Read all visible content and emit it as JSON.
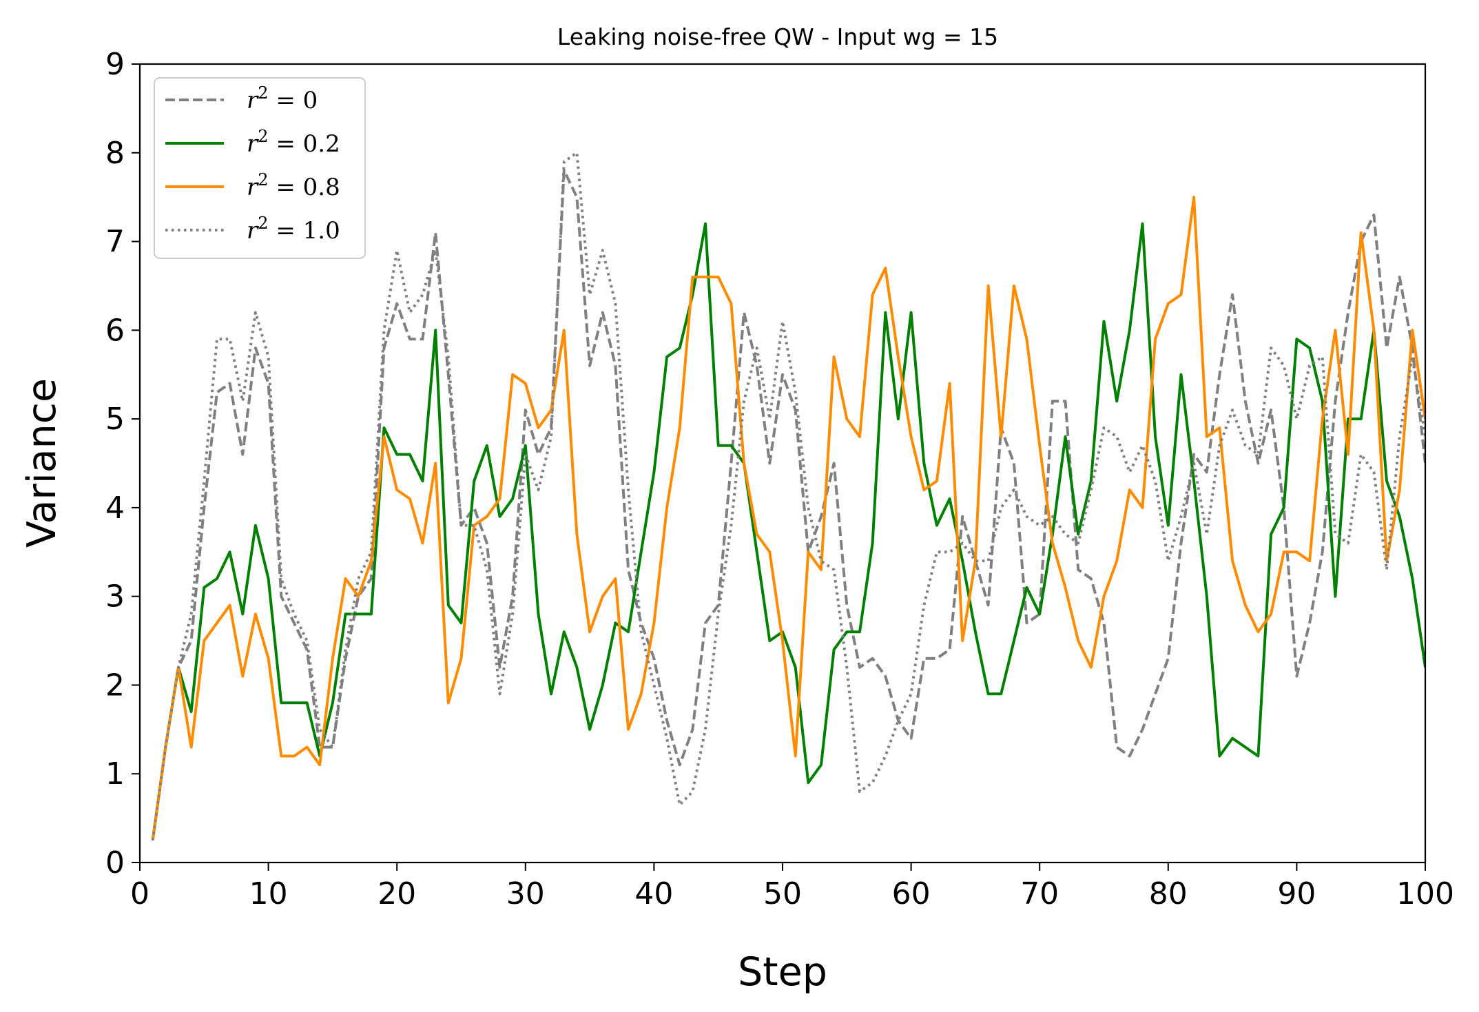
{
  "chart_data": {
    "type": "line",
    "title": "Leaking noise-free QW - Input wg = 15",
    "xlabel": "Step",
    "ylabel": "Variance",
    "xlim": [
      0,
      100
    ],
    "ylim": [
      0,
      9
    ],
    "xticks": [
      0,
      10,
      20,
      30,
      40,
      50,
      60,
      70,
      80,
      90,
      100
    ],
    "xtick_labels": [
      "0",
      "10",
      "20",
      "30",
      "40",
      "50",
      "60",
      "70",
      "80",
      "90",
      "100"
    ],
    "yticks": [
      0,
      1,
      2,
      3,
      4,
      5,
      6,
      7,
      8,
      9
    ],
    "ytick_labels": [
      "0",
      "1",
      "2",
      "3",
      "4",
      "5",
      "6",
      "7",
      "8",
      "9"
    ],
    "grid": false,
    "legend_position": "top-left",
    "x": [
      1,
      2,
      3,
      4,
      5,
      6,
      7,
      8,
      9,
      10,
      11,
      12,
      13,
      14,
      15,
      16,
      17,
      18,
      19,
      20,
      21,
      22,
      23,
      24,
      25,
      26,
      27,
      28,
      29,
      30,
      31,
      32,
      33,
      34,
      35,
      36,
      37,
      38,
      39,
      40,
      41,
      42,
      43,
      44,
      45,
      46,
      47,
      48,
      49,
      50,
      51,
      52,
      53,
      54,
      55,
      56,
      57,
      58,
      59,
      60,
      61,
      62,
      63,
      64,
      65,
      66,
      67,
      68,
      69,
      70,
      71,
      72,
      73,
      74,
      75,
      76,
      77,
      78,
      79,
      80,
      81,
      82,
      83,
      84,
      85,
      86,
      87,
      88,
      89,
      90,
      91,
      92,
      93,
      94,
      95,
      96,
      97,
      98,
      99,
      100
    ],
    "series": [
      {
        "name": "r2 = 0",
        "legend_label": "r",
        "legend_sup": "2",
        "legend_value": " = 0",
        "color": "#808080",
        "dash": "dashed",
        "values": [
          0.25,
          1.3,
          2.2,
          2.5,
          4.0,
          5.3,
          5.4,
          4.6,
          5.8,
          5.4,
          3.0,
          2.7,
          2.4,
          1.3,
          1.3,
          2.3,
          3.0,
          3.2,
          5.8,
          6.3,
          5.9,
          5.9,
          7.1,
          5.5,
          3.8,
          4.0,
          3.6,
          2.2,
          3.0,
          5.1,
          4.6,
          4.9,
          7.8,
          7.5,
          5.6,
          6.2,
          5.6,
          3.3,
          2.7,
          2.3,
          1.6,
          1.1,
          1.5,
          2.7,
          2.9,
          4.5,
          6.2,
          5.6,
          4.5,
          5.5,
          5.1,
          3.5,
          3.9,
          4.5,
          2.9,
          2.2,
          2.3,
          2.1,
          1.6,
          1.4,
          2.3,
          2.3,
          2.4,
          3.9,
          3.4,
          2.9,
          4.9,
          4.5,
          2.7,
          2.8,
          5.2,
          5.2,
          3.3,
          3.2,
          2.7,
          1.3,
          1.2,
          1.5,
          1.9,
          2.3,
          3.6,
          4.6,
          4.4,
          5.5,
          6.4,
          5.2,
          4.5,
          5.1,
          4.0,
          2.1,
          2.7,
          3.5,
          5.2,
          6.2,
          7.0,
          7.3,
          5.8,
          6.6,
          5.8,
          4.5
        ]
      },
      {
        "name": "r2 = 0.2",
        "legend_label": "r",
        "legend_sup": "2",
        "legend_value": " = 0.2",
        "color": "#008000",
        "dash": "solid",
        "values": [
          0.25,
          1.3,
          2.2,
          1.7,
          3.1,
          3.2,
          3.5,
          2.8,
          3.8,
          3.2,
          1.8,
          1.8,
          1.8,
          1.2,
          1.8,
          2.8,
          2.8,
          2.8,
          4.9,
          4.6,
          4.6,
          4.3,
          6.0,
          2.9,
          2.7,
          4.3,
          4.7,
          3.9,
          4.1,
          4.7,
          2.8,
          1.9,
          2.6,
          2.2,
          1.5,
          2.0,
          2.7,
          2.6,
          3.5,
          4.4,
          5.7,
          5.8,
          6.4,
          7.2,
          4.7,
          4.7,
          4.5,
          3.5,
          2.5,
          2.6,
          2.2,
          0.9,
          1.1,
          2.4,
          2.6,
          2.6,
          3.6,
          6.2,
          5.0,
          6.2,
          4.5,
          3.8,
          4.1,
          3.4,
          2.6,
          1.9,
          1.9,
          2.5,
          3.1,
          2.8,
          3.7,
          4.8,
          3.7,
          4.3,
          6.1,
          5.2,
          6.0,
          7.2,
          4.8,
          3.8,
          5.5,
          4.3,
          3.0,
          1.2,
          1.4,
          1.3,
          1.2,
          3.7,
          4.0,
          5.9,
          5.8,
          5.2,
          3.0,
          5.0,
          5.0,
          6.0,
          4.3,
          3.9,
          3.2,
          2.2
        ]
      },
      {
        "name": "r2 = 0.8",
        "legend_label": "r",
        "legend_sup": "2",
        "legend_value": " = 0.8",
        "color": "#ff8c00",
        "dash": "solid",
        "values": [
          0.25,
          1.3,
          2.2,
          1.3,
          2.5,
          2.7,
          2.9,
          2.1,
          2.8,
          2.3,
          1.2,
          1.2,
          1.3,
          1.1,
          2.3,
          3.2,
          3.0,
          3.4,
          4.8,
          4.2,
          4.1,
          3.6,
          4.5,
          1.8,
          2.3,
          3.8,
          3.9,
          4.1,
          5.5,
          5.4,
          4.9,
          5.1,
          6.0,
          3.7,
          2.6,
          3.0,
          3.2,
          1.5,
          1.9,
          2.7,
          4.0,
          4.9,
          6.6,
          6.6,
          6.6,
          6.3,
          4.5,
          3.7,
          3.5,
          2.5,
          1.2,
          3.5,
          3.3,
          5.7,
          5.0,
          4.8,
          6.4,
          6.7,
          5.7,
          4.8,
          4.2,
          4.3,
          5.4,
          2.5,
          3.4,
          6.5,
          4.8,
          6.5,
          5.9,
          4.7,
          3.6,
          3.1,
          2.5,
          2.2,
          3.0,
          3.4,
          4.2,
          4.0,
          5.9,
          6.3,
          6.4,
          7.5,
          4.8,
          4.9,
          3.4,
          2.9,
          2.6,
          2.8,
          3.5,
          3.5,
          3.4,
          5.0,
          6.0,
          4.6,
          7.1,
          6.0,
          3.4,
          4.2,
          6.0,
          5.0
        ]
      },
      {
        "name": "r2 = 1.0",
        "legend_label": "r",
        "legend_sup": "2",
        "legend_value": " = 1.0",
        "color": "#808080",
        "dash": "dotted",
        "values": [
          0.25,
          1.3,
          2.2,
          2.8,
          4.3,
          5.9,
          5.9,
          5.2,
          6.2,
          5.7,
          3.2,
          2.8,
          2.5,
          1.5,
          1.3,
          2.4,
          3.2,
          3.5,
          6.0,
          6.9,
          6.2,
          6.4,
          6.9,
          5.7,
          3.8,
          3.8,
          3.3,
          1.9,
          2.8,
          4.6,
          4.2,
          4.8,
          7.9,
          8.0,
          6.4,
          6.9,
          6.3,
          4.2,
          2.6,
          2.0,
          1.4,
          0.65,
          0.8,
          1.5,
          2.8,
          3.8,
          5.2,
          5.8,
          5.0,
          6.1,
          5.3,
          4.0,
          3.4,
          3.3,
          2.2,
          0.8,
          0.9,
          1.2,
          1.6,
          1.9,
          2.9,
          3.5,
          3.5,
          3.6,
          3.4,
          3.4,
          4.0,
          4.2,
          3.9,
          3.8,
          3.9,
          3.7,
          3.6,
          4.2,
          4.9,
          4.8,
          4.4,
          4.7,
          4.3,
          3.4,
          3.9,
          4.5,
          3.7,
          4.7,
          5.1,
          4.7,
          4.6,
          5.8,
          5.6,
          5.0,
          5.6,
          5.7,
          3.7,
          3.6,
          4.6,
          4.4,
          3.3,
          4.8,
          5.7,
          4.8
        ]
      }
    ]
  }
}
